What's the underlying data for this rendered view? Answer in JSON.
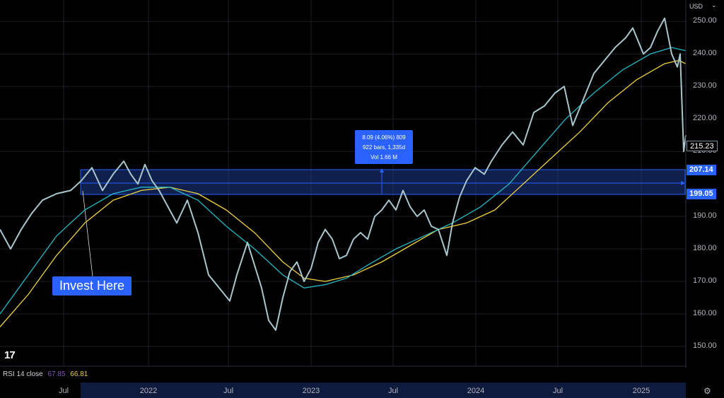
{
  "header": {
    "currency": "USD",
    "dropdown_icon": "chevron-down-icon"
  },
  "price_axis": {
    "ticks": [
      "250.00",
      "240.00",
      "230.00",
      "220.00",
      "210.00",
      "190.00",
      "180.00",
      "170.00",
      "160.00",
      "150.00"
    ],
    "last_price": "215.23",
    "zone_upper": "207.14",
    "zone_lower": "199.05"
  },
  "time_axis": {
    "labels": [
      "Jul",
      "2022",
      "Jul",
      "2023",
      "Jul",
      "2024",
      "Jul",
      "2025"
    ]
  },
  "measure_tool": {
    "line1": "8.09 (4.06%) 809",
    "line2": "922 bars, 1,335d",
    "line3": "Vol 1.66 M"
  },
  "callout": {
    "text": "Invest Here"
  },
  "indicator": {
    "name": "RSI 14 close",
    "value1": "67.85",
    "value2": "66.81"
  },
  "logo_text": "17",
  "colors": {
    "price": "#a8c6cc",
    "ma_fast": "#26b8c6",
    "ma_slow": "#f0d040",
    "accent": "#2962ff"
  },
  "chart_data": {
    "type": "line",
    "x_labels": [
      "Jul",
      "2022",
      "Jul",
      "2023",
      "Jul",
      "2024",
      "Jul",
      "2025"
    ],
    "ylim": [
      145,
      254
    ],
    "y_ticks": [
      250,
      240,
      230,
      220,
      210,
      190,
      180,
      170,
      160,
      150
    ],
    "highlight_zone": [
      199.05,
      207.14
    ],
    "series": [
      {
        "role": "price",
        "points": [
          [
            0,
            186
          ],
          [
            15,
            180
          ],
          [
            30,
            186
          ],
          [
            45,
            191
          ],
          [
            60,
            195
          ],
          [
            80,
            197
          ],
          [
            100,
            198
          ],
          [
            115,
            201
          ],
          [
            130,
            205
          ],
          [
            145,
            198
          ],
          [
            160,
            203
          ],
          [
            175,
            207
          ],
          [
            185,
            203
          ],
          [
            195,
            200
          ],
          [
            205,
            206
          ],
          [
            215,
            201
          ],
          [
            225,
            198
          ],
          [
            240,
            192
          ],
          [
            250,
            188
          ],
          [
            265,
            195
          ],
          [
            280,
            185
          ],
          [
            295,
            172
          ],
          [
            310,
            168
          ],
          [
            325,
            164
          ],
          [
            335,
            172
          ],
          [
            350,
            182
          ],
          [
            360,
            175
          ],
          [
            370,
            168
          ],
          [
            380,
            158
          ],
          [
            390,
            155
          ],
          [
            400,
            165
          ],
          [
            410,
            173
          ],
          [
            420,
            176
          ],
          [
            430,
            170
          ],
          [
            440,
            174
          ],
          [
            450,
            182
          ],
          [
            460,
            186
          ],
          [
            470,
            183
          ],
          [
            480,
            177
          ],
          [
            490,
            178
          ],
          [
            500,
            183
          ],
          [
            510,
            185
          ],
          [
            520,
            183
          ],
          [
            530,
            190
          ],
          [
            540,
            192
          ],
          [
            550,
            195
          ],
          [
            560,
            192
          ],
          [
            570,
            198
          ],
          [
            580,
            193
          ],
          [
            590,
            190
          ],
          [
            600,
            192
          ],
          [
            610,
            187
          ],
          [
            620,
            186
          ],
          [
            632,
            178
          ],
          [
            640,
            188
          ],
          [
            650,
            196
          ],
          [
            660,
            201
          ],
          [
            672,
            205
          ],
          [
            685,
            203
          ],
          [
            695,
            207
          ],
          [
            710,
            212
          ],
          [
            725,
            216
          ],
          [
            740,
            212
          ],
          [
            755,
            222
          ],
          [
            770,
            224
          ],
          [
            785,
            228
          ],
          [
            798,
            230
          ],
          [
            810,
            218
          ],
          [
            825,
            226
          ],
          [
            840,
            234
          ],
          [
            855,
            238
          ],
          [
            870,
            242
          ],
          [
            885,
            245
          ],
          [
            895,
            248
          ],
          [
            910,
            240
          ],
          [
            920,
            242
          ],
          [
            930,
            247
          ],
          [
            940,
            251
          ],
          [
            950,
            240
          ],
          [
            958,
            236
          ],
          [
            962,
            240
          ],
          [
            967,
            210
          ],
          [
            970,
            215
          ]
        ]
      },
      {
        "role": "ma_fast",
        "points": [
          [
            0,
            160
          ],
          [
            40,
            172
          ],
          [
            80,
            184
          ],
          [
            120,
            192
          ],
          [
            160,
            197
          ],
          [
            200,
            199
          ],
          [
            240,
            199
          ],
          [
            280,
            195
          ],
          [
            320,
            187
          ],
          [
            360,
            180
          ],
          [
            400,
            172
          ],
          [
            430,
            168
          ],
          [
            460,
            169
          ],
          [
            490,
            171
          ],
          [
            520,
            175
          ],
          [
            560,
            180
          ],
          [
            600,
            184
          ],
          [
            640,
            188
          ],
          [
            680,
            193
          ],
          [
            720,
            200
          ],
          [
            760,
            210
          ],
          [
            800,
            220
          ],
          [
            840,
            228
          ],
          [
            880,
            235
          ],
          [
            920,
            240
          ],
          [
            950,
            242
          ],
          [
            970,
            241
          ]
        ]
      },
      {
        "role": "ma_slow",
        "points": [
          [
            0,
            156
          ],
          [
            40,
            166
          ],
          [
            80,
            178
          ],
          [
            120,
            188
          ],
          [
            160,
            195
          ],
          [
            200,
            198
          ],
          [
            240,
            199
          ],
          [
            280,
            197
          ],
          [
            320,
            192
          ],
          [
            360,
            185
          ],
          [
            400,
            176
          ],
          [
            430,
            171
          ],
          [
            460,
            170
          ],
          [
            500,
            172
          ],
          [
            540,
            176
          ],
          [
            580,
            181
          ],
          [
            620,
            186
          ],
          [
            660,
            188
          ],
          [
            700,
            192
          ],
          [
            740,
            200
          ],
          [
            780,
            208
          ],
          [
            820,
            216
          ],
          [
            860,
            225
          ],
          [
            900,
            232
          ],
          [
            940,
            237
          ],
          [
            960,
            238
          ],
          [
            970,
            237
          ]
        ]
      }
    ]
  }
}
